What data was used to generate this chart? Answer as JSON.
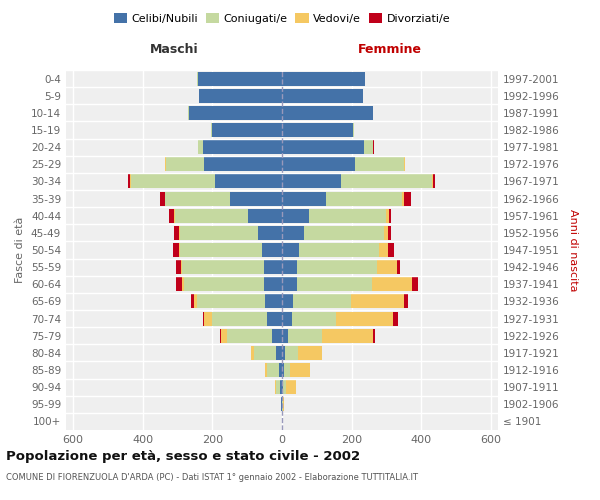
{
  "age_groups": [
    "100+",
    "95-99",
    "90-94",
    "85-89",
    "80-84",
    "75-79",
    "70-74",
    "65-69",
    "60-64",
    "55-59",
    "50-54",
    "45-49",
    "40-44",
    "35-39",
    "30-34",
    "25-29",
    "20-24",
    "15-19",
    "10-14",
    "5-9",
    "0-4"
  ],
  "birth_years": [
    "≤ 1901",
    "1902-1906",
    "1907-1911",
    "1912-1916",
    "1917-1921",
    "1922-1926",
    "1927-1931",
    "1932-1936",
    "1937-1941",
    "1942-1946",
    "1947-1951",
    "1952-1956",
    "1957-1961",
    "1962-1966",
    "1967-1971",
    "1972-1976",
    "1977-1981",
    "1982-1986",
    "1987-1991",
    "1992-1996",
    "1997-2001"
  ],
  "maschi_celibi": [
    1,
    2,
    5,
    10,
    18,
    28,
    42,
    48,
    52,
    52,
    58,
    68,
    98,
    148,
    192,
    225,
    228,
    200,
    268,
    238,
    242
  ],
  "maschi_coniugati": [
    0,
    2,
    12,
    32,
    62,
    130,
    160,
    196,
    230,
    236,
    236,
    226,
    210,
    188,
    242,
    108,
    12,
    3,
    2,
    1,
    1
  ],
  "maschi_vedovi": [
    0,
    0,
    3,
    6,
    8,
    18,
    22,
    8,
    4,
    3,
    2,
    1,
    1,
    1,
    3,
    3,
    1,
    0,
    0,
    0,
    0
  ],
  "maschi_divorziati": [
    0,
    0,
    0,
    1,
    1,
    2,
    2,
    9,
    18,
    14,
    16,
    14,
    14,
    13,
    4,
    1,
    0,
    0,
    0,
    0,
    0
  ],
  "femmine_nubili": [
    0,
    1,
    4,
    7,
    9,
    18,
    28,
    33,
    42,
    43,
    48,
    62,
    78,
    125,
    170,
    210,
    235,
    205,
    260,
    232,
    237
  ],
  "femmine_coniugate": [
    0,
    2,
    8,
    16,
    36,
    96,
    126,
    166,
    216,
    231,
    231,
    230,
    220,
    220,
    260,
    140,
    26,
    3,
    1,
    1,
    1
  ],
  "femmine_vedove": [
    0,
    4,
    28,
    56,
    70,
    146,
    166,
    150,
    116,
    56,
    26,
    12,
    8,
    6,
    4,
    2,
    1,
    0,
    0,
    0,
    0
  ],
  "femmine_divorziate": [
    0,
    0,
    0,
    0,
    1,
    8,
    12,
    13,
    16,
    8,
    16,
    8,
    8,
    18,
    6,
    2,
    1,
    0,
    0,
    0,
    0
  ],
  "color_celibi": "#4472a8",
  "color_coniugati": "#c5d9a0",
  "color_vedovi": "#f5c862",
  "color_divorziati": "#c0001a",
  "bg_color": "#efefef",
  "xlim": 620,
  "title": "Popolazione per età, sesso e stato civile - 2002",
  "subtitle": "COMUNE DI FIORENZUOLA D'ARDA (PC) - Dati ISTAT 1° gennaio 2002 - Elaborazione TUTTITALIA.IT",
  "ylabel_left": "Fasce di età",
  "ylabel_right": "Anni di nascita",
  "label_maschi": "Maschi",
  "label_femmine": "Femmine",
  "legend_labels": [
    "Celibi/Nubili",
    "Coniugati/e",
    "Vedovi/e",
    "Divorziati/e"
  ],
  "xticks": [
    -600,
    -400,
    -200,
    0,
    200,
    400,
    600
  ]
}
